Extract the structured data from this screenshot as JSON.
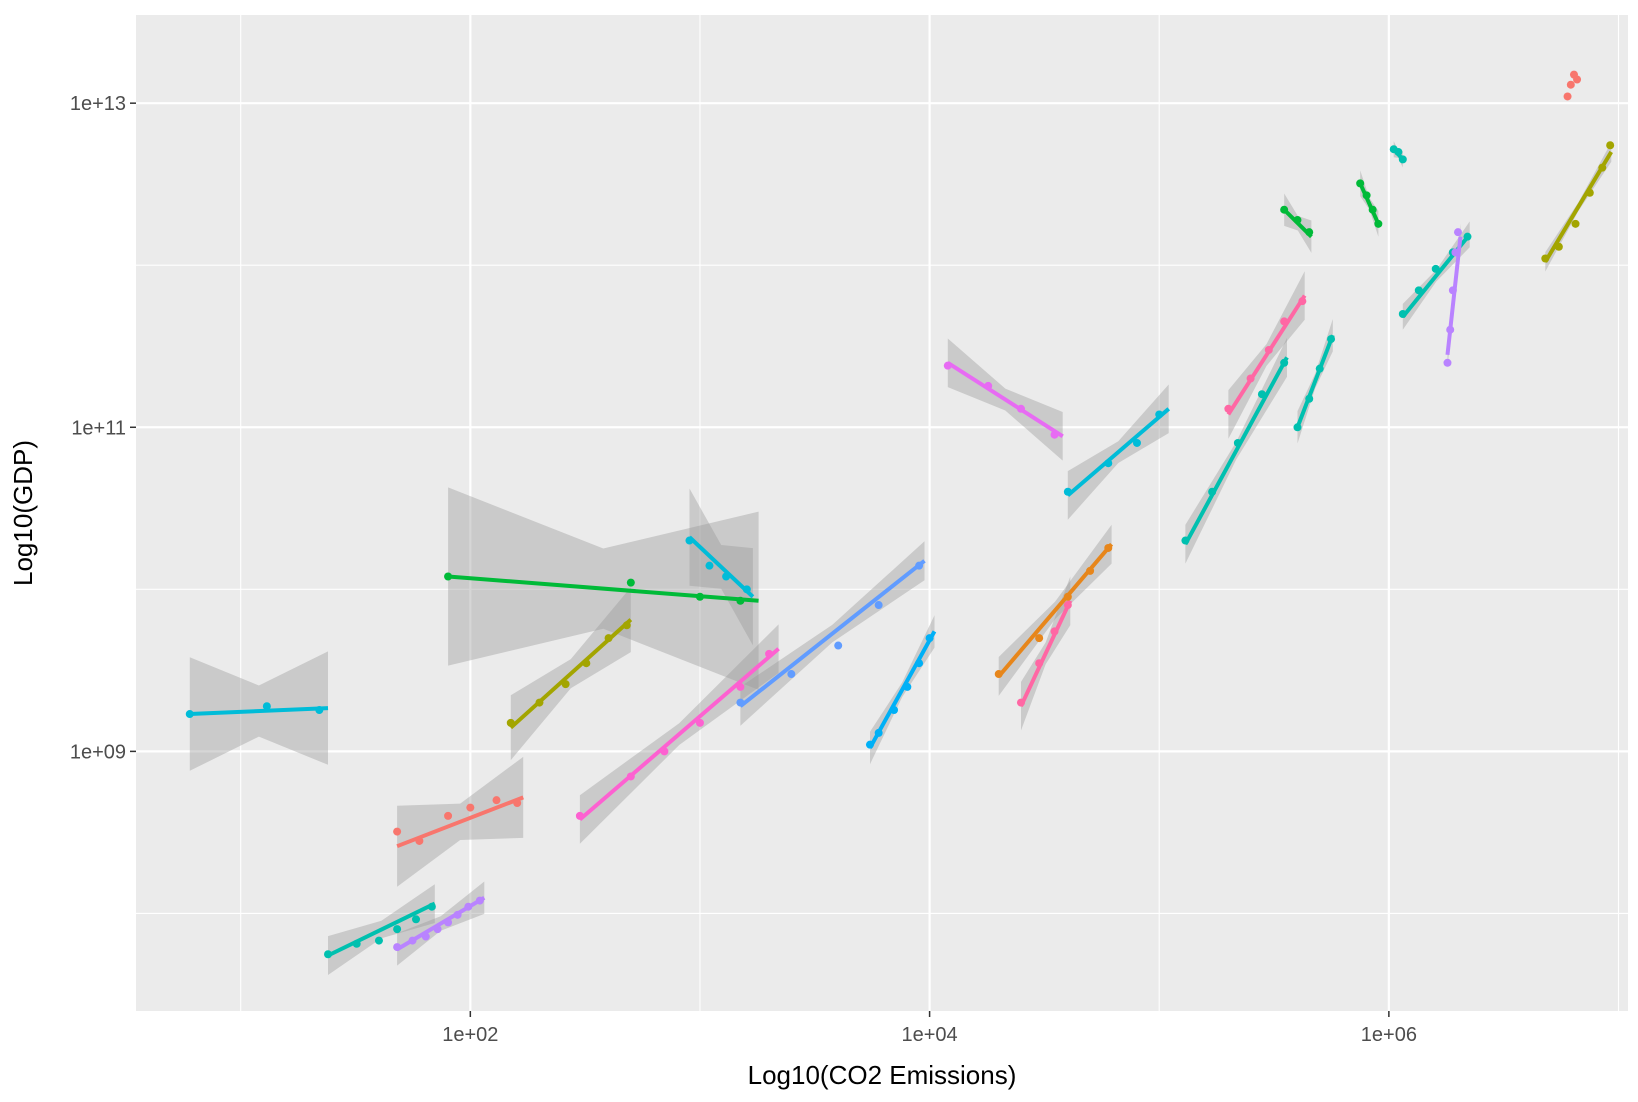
{
  "chart_data": {
    "type": "scatter",
    "xlabel": "Log10(CO2 Emissions)",
    "ylabel": "Log10(GDP)",
    "x_scale": "log10",
    "y_scale": "log10",
    "xlim": [
      3.5,
      11000000
    ],
    "ylim": [
      25000000,
      35000000000000
    ],
    "x_ticks": [
      {
        "value": 100,
        "label": "1e+02"
      },
      {
        "value": 10000,
        "label": "1e+04"
      },
      {
        "value": 1000000,
        "label": "1e+06"
      }
    ],
    "y_ticks": [
      {
        "value": 1000000000,
        "label": "1e+09"
      },
      {
        "value": 100000000000,
        "label": "1e+11"
      },
      {
        "value": 10000000000000,
        "label": "1e+13"
      }
    ],
    "grid": true,
    "background": "#ebebeb",
    "legend": "none",
    "palette": [
      "#f8766d",
      "#e7861b",
      "#c99800",
      "#a3a500",
      "#6bb100",
      "#00ba38",
      "#00bf7d",
      "#00c0af",
      "#00bcd8",
      "#00b0f6",
      "#619cff",
      "#b983ff",
      "#e76bf3",
      "#fd61d1",
      "#ff67a4"
    ],
    "series": [
      {
        "color": "#00bcd8",
        "points": [
          [
            6,
            1700000000
          ],
          [
            13,
            1900000000
          ],
          [
            22,
            1800000000
          ]
        ],
        "fit": [
          [
            6,
            1700000000
          ],
          [
            24,
            1850000000
          ]
        ],
        "band": 0.35
      },
      {
        "color": "#00c0af",
        "points": [
          [
            24,
            56000000
          ],
          [
            32,
            65000000
          ],
          [
            40,
            68000000
          ],
          [
            48,
            80000000
          ],
          [
            58,
            92000000
          ],
          [
            68,
            110000000
          ]
        ],
        "fit": [
          [
            24,
            55000000
          ],
          [
            70,
            115000000
          ]
        ],
        "band": 0.12
      },
      {
        "color": "#b983ff",
        "points": [
          [
            48,
            62000000
          ],
          [
            56,
            68000000
          ],
          [
            64,
            72000000
          ],
          [
            72,
            80000000
          ],
          [
            80,
            88000000
          ],
          [
            88,
            98000000
          ],
          [
            98,
            110000000
          ],
          [
            110,
            120000000
          ]
        ],
        "fit": [
          [
            48,
            60000000
          ],
          [
            115,
            125000000
          ]
        ],
        "band": 0.1
      },
      {
        "color": "#f8766d",
        "points": [
          [
            48,
            320000000
          ],
          [
            60,
            280000000
          ],
          [
            80,
            400000000
          ],
          [
            100,
            450000000
          ],
          [
            130,
            500000000
          ],
          [
            160,
            480000000
          ]
        ],
        "fit": [
          [
            48,
            260000000
          ],
          [
            170,
            520000000
          ]
        ],
        "band": 0.25
      },
      {
        "color": "#00ba38",
        "points": [
          [
            80,
            12000000000
          ],
          [
            500,
            11000000000
          ],
          [
            1000,
            9000000000
          ],
          [
            1500,
            8500000000
          ]
        ],
        "fit": [
          [
            80,
            12000000000
          ],
          [
            1800,
            8500000000
          ]
        ],
        "band": 0.55
      },
      {
        "color": "#a3a500",
        "points": [
          [
            150,
            1500000000
          ],
          [
            200,
            2000000000
          ],
          [
            260,
            2600000000
          ],
          [
            320,
            3500000000
          ],
          [
            400,
            5000000000
          ],
          [
            480,
            6000000000
          ]
        ],
        "fit": [
          [
            150,
            1400000000
          ],
          [
            500,
            6500000000
          ]
        ],
        "band": 0.2
      },
      {
        "color": "#00bcd8",
        "points": [
          [
            900,
            20000000000
          ],
          [
            1100,
            14000000000
          ],
          [
            1300,
            12000000000
          ],
          [
            1600,
            10000000000
          ]
        ],
        "fit": [
          [
            900,
            21000000000
          ],
          [
            1700,
            9000000000
          ]
        ],
        "band": 0.3
      },
      {
        "color": "#fd61d1",
        "points": [
          [
            300,
            400000000
          ],
          [
            500,
            700000000
          ],
          [
            700,
            1000000000
          ],
          [
            1000,
            1500000000
          ],
          [
            1500,
            2500000000
          ],
          [
            2000,
            4000000000
          ]
        ],
        "fit": [
          [
            300,
            380000000
          ],
          [
            2200,
            4300000000
          ]
        ],
        "band": 0.15
      },
      {
        "color": "#619cff",
        "points": [
          [
            1500,
            2000000000
          ],
          [
            2500,
            3000000000
          ],
          [
            4000,
            4500000000
          ],
          [
            6000,
            8000000000
          ],
          [
            9000,
            14000000000
          ]
        ],
        "fit": [
          [
            1500,
            1900000000
          ],
          [
            9500,
            15000000000
          ]
        ],
        "band": 0.12
      },
      {
        "color": "#00b0f6",
        "points": [
          [
            5500,
            1100000000
          ],
          [
            6000,
            1300000000
          ],
          [
            7000,
            1800000000
          ],
          [
            8000,
            2500000000
          ],
          [
            9000,
            3500000000
          ],
          [
            10000,
            5000000000
          ]
        ],
        "fit": [
          [
            5500,
            1050000000
          ],
          [
            10500,
            5500000000
          ]
        ],
        "band": 0.1
      },
      {
        "color": "#e7861b",
        "points": [
          [
            20000,
            3000000000
          ],
          [
            30000,
            5000000000
          ],
          [
            40000,
            9000000000
          ],
          [
            50000,
            13000000000
          ],
          [
            60000,
            18000000000
          ]
        ],
        "fit": [
          [
            20000,
            2900000000
          ],
          [
            62000,
            19000000000
          ]
        ],
        "band": 0.12
      },
      {
        "color": "#ff67a4",
        "points": [
          [
            25000,
            2000000000
          ],
          [
            30000,
            3500000000
          ],
          [
            35000,
            5500000000
          ],
          [
            40000,
            8000000000
          ]
        ],
        "fit": [
          [
            25000,
            1900000000
          ],
          [
            41000,
            8500000000
          ]
        ],
        "band": 0.15
      },
      {
        "color": "#00bcd8",
        "points": [
          [
            40000,
            40000000000
          ],
          [
            60000,
            60000000000
          ],
          [
            80000,
            80000000000
          ],
          [
            100000,
            120000000000
          ]
        ],
        "fit": [
          [
            40000,
            38000000000
          ],
          [
            110000,
            130000000000
          ]
        ],
        "band": 0.15
      },
      {
        "color": "#e76bf3",
        "points": [
          [
            12000,
            240000000000
          ],
          [
            18000,
            180000000000
          ],
          [
            25000,
            130000000000
          ],
          [
            35000,
            90000000000
          ]
        ],
        "fit": [
          [
            12000,
            250000000000
          ],
          [
            38000,
            88000000000
          ]
        ],
        "band": 0.15
      },
      {
        "color": "#00c0af",
        "points": [
          [
            130000,
            20000000000
          ],
          [
            170000,
            40000000000
          ],
          [
            220000,
            80000000000
          ],
          [
            280000,
            160000000000
          ],
          [
            350000,
            250000000000
          ]
        ],
        "fit": [
          [
            130000,
            19000000000
          ],
          [
            360000,
            270000000000
          ]
        ],
        "band": 0.12
      },
      {
        "color": "#ff67a4",
        "points": [
          [
            200000,
            130000000000
          ],
          [
            250000,
            200000000000
          ],
          [
            300000,
            300000000000
          ],
          [
            350000,
            450000000000
          ],
          [
            420000,
            600000000000
          ]
        ],
        "fit": [
          [
            200000,
            120000000000
          ],
          [
            430000,
            650000000000
          ]
        ],
        "band": 0.15
      },
      {
        "color": "#00c0af",
        "points": [
          [
            400000,
            100000000000
          ],
          [
            450000,
            150000000000
          ],
          [
            500000,
            230000000000
          ],
          [
            560000,
            350000000000
          ]
        ],
        "fit": [
          [
            400000,
            100000000000
          ],
          [
            570000,
            370000000000
          ]
        ],
        "band": 0.1
      },
      {
        "color": "#00ba38",
        "points": [
          [
            350000,
            2200000000000
          ],
          [
            400000,
            1900000000000
          ],
          [
            450000,
            1600000000000
          ]
        ],
        "fit": [
          [
            350000,
            2200000000000
          ],
          [
            460000,
            1500000000000
          ]
        ],
        "band": 0.1
      },
      {
        "color": "#00ba38",
        "points": [
          [
            750000,
            3200000000000
          ],
          [
            800000,
            2700000000000
          ],
          [
            850000,
            2200000000000
          ],
          [
            900000,
            1800000000000
          ]
        ],
        "fit": [
          [
            750000,
            3200000000000
          ],
          [
            900000,
            1800000000000
          ]
        ],
        "band": 0.08
      },
      {
        "color": "#00c0af",
        "points": [
          [
            1050000,
            5200000000000
          ],
          [
            1100000,
            5000000000000
          ],
          [
            1150000,
            4500000000000
          ]
        ],
        "fit": [
          [
            1050000,
            5200000000000
          ],
          [
            1150000,
            4500000000000
          ]
        ],
        "band": 0.05
      },
      {
        "color": "#00c0af",
        "points": [
          [
            1150000,
            500000000000
          ],
          [
            1350000,
            700000000000
          ],
          [
            1600000,
            950000000000
          ],
          [
            1900000,
            1200000000000
          ],
          [
            2200000,
            1500000000000
          ]
        ],
        "fit": [
          [
            1150000,
            480000000000
          ],
          [
            2250000,
            1550000000000
          ]
        ],
        "band": 0.08
      },
      {
        "color": "#b983ff",
        "points": [
          [
            1800000,
            250000000000
          ],
          [
            1850000,
            400000000000
          ],
          [
            1900000,
            700000000000
          ],
          [
            1950000,
            1200000000000
          ],
          [
            2000000,
            1600000000000
          ]
        ],
        "fit": [
          [
            1800000,
            280000000000
          ],
          [
            2050000,
            1500000000000
          ]
        ],
        "band": 0.08
      },
      {
        "color": "#a3a500",
        "points": [
          [
            4800000,
            1100000000000
          ],
          [
            5500000,
            1300000000000
          ],
          [
            6500000,
            1800000000000
          ],
          [
            7500000,
            2800000000000
          ],
          [
            8500000,
            4000000000000
          ],
          [
            9200000,
            5500000000000
          ]
        ],
        "fit": [
          [
            4800000,
            1050000000000
          ],
          [
            9300000,
            5000000000000
          ]
        ],
        "band": 0.06
      },
      {
        "color": "#f8766d",
        "points": [
          [
            6000000,
            11000000000000
          ],
          [
            6200000,
            13000000000000
          ],
          [
            6400000,
            15000000000000
          ],
          [
            6600000,
            14000000000000
          ]
        ],
        "fit": [],
        "band": 0
      }
    ]
  }
}
